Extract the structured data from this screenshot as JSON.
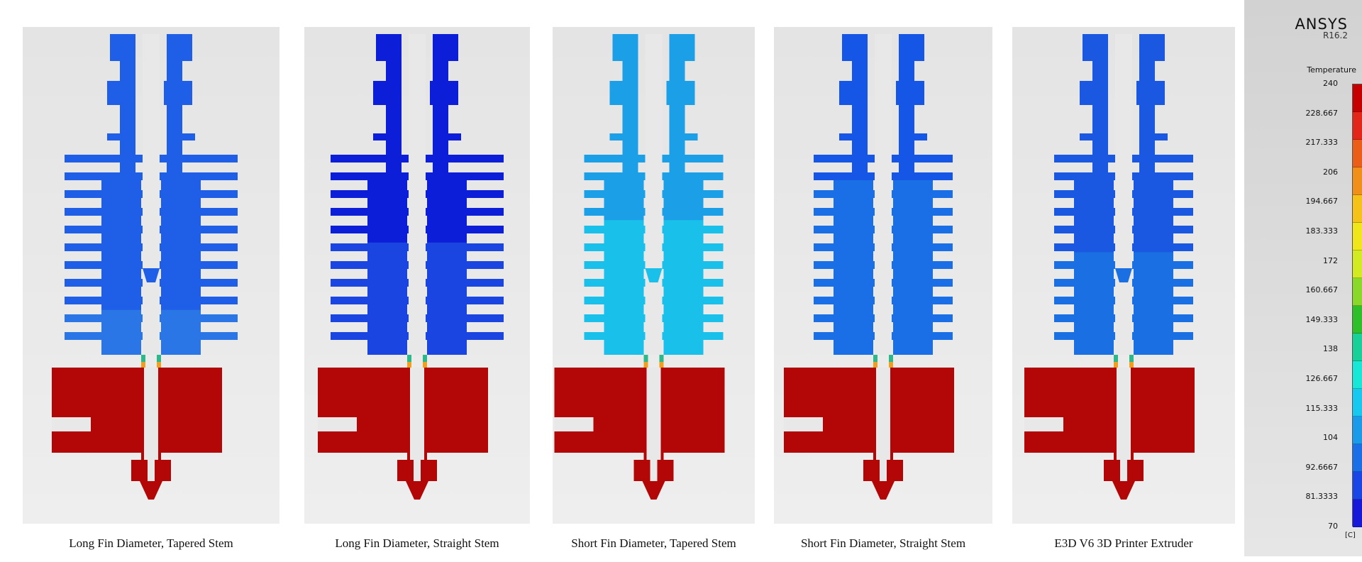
{
  "panels": [
    {
      "caption": "Long Fin Diameter, Tapered Stem",
      "heatsink_color": "#1f5ee6",
      "shade_color": "#2a76e6",
      "shade_from": 0.86,
      "fin_halfwidth": 122,
      "tapered": true
    },
    {
      "caption": "Long Fin Diameter, Straight Stem",
      "heatsink_color": "#0c1ed8",
      "shade_color": "#1a45e0",
      "shade_from": 0.65,
      "fin_halfwidth": 122,
      "tapered": false
    },
    {
      "caption": "Short Fin Diameter, Tapered Stem",
      "heatsink_color": "#1b9fe6",
      "shade_color": "#18c0ea",
      "shade_from": 0.58,
      "fin_halfwidth": 98,
      "tapered": true
    },
    {
      "caption": "Short Fin Diameter, Straight Stem",
      "heatsink_color": "#1656e6",
      "shade_color": "#1a6fe6",
      "shade_from": 0.45,
      "fin_halfwidth": 98,
      "tapered": false
    },
    {
      "caption": "E3D V6 3D Printer Extruder",
      "heatsink_color": "#1a58e2",
      "shade_color": "#1a6fe2",
      "shade_from": 0.68,
      "fin_halfwidth": 98,
      "tapered": true
    }
  ],
  "heater_color": "#b30606",
  "legend": {
    "brand": "ANSYS",
    "version": "R16.2",
    "title": "Temperature",
    "unit": "[C]",
    "ticks": [
      "240",
      "228.667",
      "217.333",
      "206",
      "194.667",
      "183.333",
      "172",
      "160.667",
      "149.333",
      "138",
      "126.667",
      "115.333",
      "104",
      "92.6667",
      "81.3333",
      "70"
    ],
    "band_colors": [
      "#c40000",
      "#e2261a",
      "#ea5e1a",
      "#f0901a",
      "#f5c21a",
      "#f0e61c",
      "#d2ea22",
      "#8ad92a",
      "#2ebf2a",
      "#18d098",
      "#18e6d6",
      "#18c8ee",
      "#1a9ae8",
      "#1a6ee6",
      "#1a46e6",
      "#1818d8"
    ]
  }
}
